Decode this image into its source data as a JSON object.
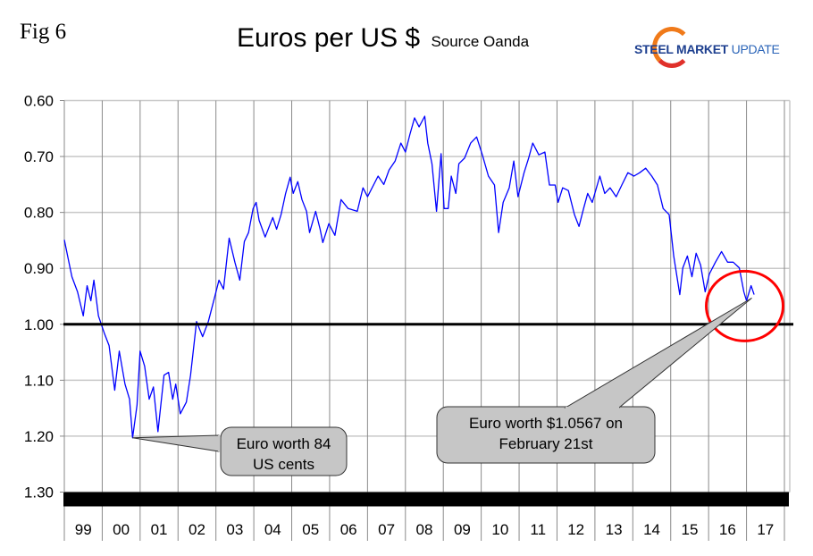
{
  "figure_label": "Fig 6",
  "logo": {
    "bold": "STEEL MARKET",
    "light": "UPDATE"
  },
  "chart_data": {
    "type": "line",
    "title": "Euros per US $",
    "subtitle": "Source Oanda",
    "xlabel": "",
    "ylabel": "",
    "y_inverted": true,
    "ylim": [
      0.6,
      1.3
    ],
    "yticks": [
      "0.60",
      "0.70",
      "0.80",
      "0.90",
      "1.00",
      "1.10",
      "1.20",
      "1.30"
    ],
    "xlim": [
      1999,
      2018
    ],
    "xtick_labels": [
      "99",
      "00",
      "01",
      "02",
      "03",
      "04",
      "05",
      "06",
      "07",
      "08",
      "09",
      "10",
      "11",
      "12",
      "13",
      "14",
      "15",
      "16",
      "17"
    ],
    "grid": true,
    "reference_line": 1.0,
    "series": [
      {
        "name": "Euros per US $",
        "color": "#0000ff",
        "points": [
          [
            1999.0,
            0.849
          ],
          [
            1999.12,
            0.889
          ],
          [
            1999.2,
            0.915
          ],
          [
            1999.35,
            0.942
          ],
          [
            1999.5,
            0.985
          ],
          [
            1999.6,
            0.931
          ],
          [
            1999.7,
            0.958
          ],
          [
            1999.78,
            0.921
          ],
          [
            1999.9,
            0.985
          ],
          [
            2000.06,
            1.017
          ],
          [
            2000.18,
            1.038
          ],
          [
            2000.33,
            1.118
          ],
          [
            2000.45,
            1.048
          ],
          [
            2000.6,
            1.107
          ],
          [
            2000.72,
            1.134
          ],
          [
            2000.8,
            1.203
          ],
          [
            2000.92,
            1.144
          ],
          [
            2001.0,
            1.048
          ],
          [
            2001.12,
            1.075
          ],
          [
            2001.24,
            1.134
          ],
          [
            2001.35,
            1.112
          ],
          [
            2001.47,
            1.192
          ],
          [
            2001.63,
            1.091
          ],
          [
            2001.75,
            1.086
          ],
          [
            2001.86,
            1.134
          ],
          [
            2001.94,
            1.107
          ],
          [
            2002.06,
            1.16
          ],
          [
            2002.22,
            1.139
          ],
          [
            2002.33,
            1.091
          ],
          [
            2002.49,
            0.995
          ],
          [
            2002.65,
            1.022
          ],
          [
            2002.8,
            0.995
          ],
          [
            2002.96,
            0.953
          ],
          [
            2003.08,
            0.921
          ],
          [
            2003.2,
            0.937
          ],
          [
            2003.35,
            0.846
          ],
          [
            2003.5,
            0.889
          ],
          [
            2003.63,
            0.921
          ],
          [
            2003.75,
            0.852
          ],
          [
            2003.86,
            0.836
          ],
          [
            2003.98,
            0.793
          ],
          [
            2004.06,
            0.782
          ],
          [
            2004.14,
            0.814
          ],
          [
            2004.3,
            0.844
          ],
          [
            2004.5,
            0.809
          ],
          [
            2004.6,
            0.83
          ],
          [
            2004.72,
            0.804
          ],
          [
            2004.84,
            0.766
          ],
          [
            2004.96,
            0.737
          ],
          [
            2005.04,
            0.766
          ],
          [
            2005.16,
            0.745
          ],
          [
            2005.27,
            0.777
          ],
          [
            2005.39,
            0.798
          ],
          [
            2005.47,
            0.836
          ],
          [
            2005.63,
            0.798
          ],
          [
            2005.75,
            0.83
          ],
          [
            2005.82,
            0.854
          ],
          [
            2005.98,
            0.82
          ],
          [
            2006.14,
            0.841
          ],
          [
            2006.3,
            0.777
          ],
          [
            2006.49,
            0.793
          ],
          [
            2006.73,
            0.798
          ],
          [
            2006.88,
            0.756
          ],
          [
            2007.0,
            0.772
          ],
          [
            2007.28,
            0.735
          ],
          [
            2007.43,
            0.75
          ],
          [
            2007.57,
            0.724
          ],
          [
            2007.73,
            0.708
          ],
          [
            2007.88,
            0.676
          ],
          [
            2008.0,
            0.692
          ],
          [
            2008.12,
            0.66
          ],
          [
            2008.24,
            0.631
          ],
          [
            2008.36,
            0.647
          ],
          [
            2008.51,
            0.628
          ],
          [
            2008.59,
            0.676
          ],
          [
            2008.7,
            0.713
          ],
          [
            2008.82,
            0.798
          ],
          [
            2008.94,
            0.695
          ],
          [
            2009.02,
            0.793
          ],
          [
            2009.13,
            0.793
          ],
          [
            2009.21,
            0.735
          ],
          [
            2009.33,
            0.766
          ],
          [
            2009.41,
            0.713
          ],
          [
            2009.56,
            0.703
          ],
          [
            2009.72,
            0.676
          ],
          [
            2009.88,
            0.665
          ],
          [
            2010.03,
            0.697
          ],
          [
            2010.19,
            0.735
          ],
          [
            2010.35,
            0.751
          ],
          [
            2010.46,
            0.836
          ],
          [
            2010.58,
            0.782
          ],
          [
            2010.74,
            0.756
          ],
          [
            2010.86,
            0.708
          ],
          [
            2010.97,
            0.772
          ],
          [
            2011.13,
            0.729
          ],
          [
            2011.25,
            0.703
          ],
          [
            2011.36,
            0.676
          ],
          [
            2011.52,
            0.697
          ],
          [
            2011.68,
            0.692
          ],
          [
            2011.8,
            0.751
          ],
          [
            2011.95,
            0.751
          ],
          [
            2012.03,
            0.782
          ],
          [
            2012.15,
            0.756
          ],
          [
            2012.3,
            0.761
          ],
          [
            2012.46,
            0.804
          ],
          [
            2012.58,
            0.825
          ],
          [
            2012.7,
            0.793
          ],
          [
            2012.81,
            0.766
          ],
          [
            2012.93,
            0.782
          ],
          [
            2013.13,
            0.735
          ],
          [
            2013.26,
            0.766
          ],
          [
            2013.4,
            0.756
          ],
          [
            2013.56,
            0.772
          ],
          [
            2013.71,
            0.751
          ],
          [
            2013.87,
            0.729
          ],
          [
            2014.03,
            0.735
          ],
          [
            2014.18,
            0.729
          ],
          [
            2014.34,
            0.721
          ],
          [
            2014.5,
            0.735
          ],
          [
            2014.65,
            0.751
          ],
          [
            2014.8,
            0.793
          ],
          [
            2014.96,
            0.804
          ],
          [
            2015.08,
            0.878
          ],
          [
            2015.24,
            0.947
          ],
          [
            2015.32,
            0.899
          ],
          [
            2015.44,
            0.878
          ],
          [
            2015.56,
            0.915
          ],
          [
            2015.67,
            0.873
          ],
          [
            2015.79,
            0.894
          ],
          [
            2015.91,
            0.942
          ],
          [
            2016.02,
            0.91
          ],
          [
            2016.18,
            0.889
          ],
          [
            2016.34,
            0.87
          ],
          [
            2016.5,
            0.889
          ],
          [
            2016.65,
            0.889
          ],
          [
            2016.81,
            0.899
          ],
          [
            2016.93,
            0.942
          ],
          [
            2017.0,
            0.958
          ],
          [
            2017.12,
            0.931
          ],
          [
            2017.2,
            0.947
          ]
        ]
      }
    ],
    "annotations": [
      {
        "id": "low",
        "lines": [
          "Euro worth 84",
          "US cents"
        ],
        "points_to": [
          2000.8,
          1.203
        ]
      },
      {
        "id": "latest",
        "lines": [
          "Euro worth $1.0567 on",
          "February 21st"
        ],
        "points_to": [
          2017.14,
          0.953
        ],
        "highlight": "red-circle"
      }
    ],
    "highlight_color": "#ff0000"
  }
}
